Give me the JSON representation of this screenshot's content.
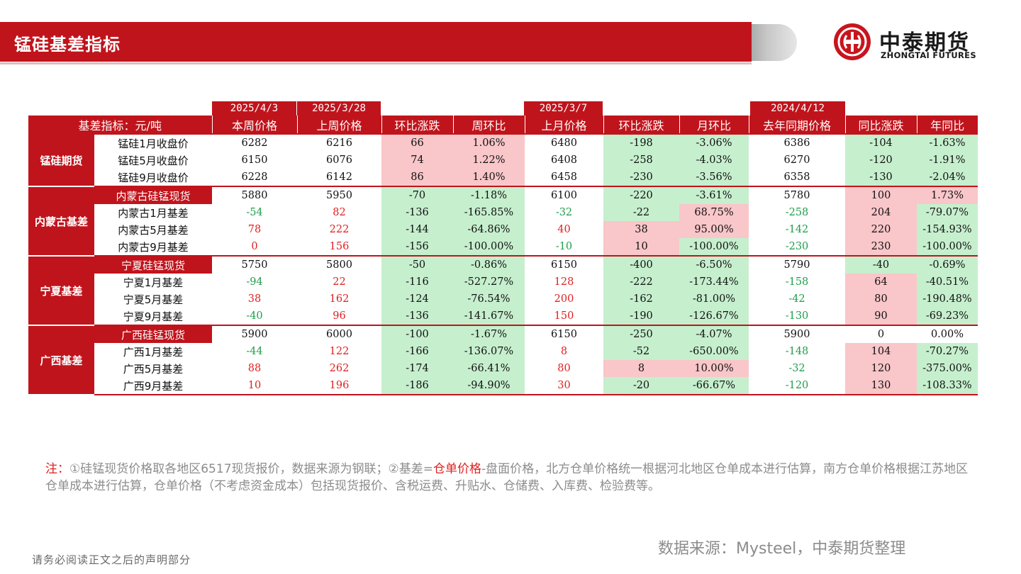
{
  "header": {
    "title": "锰硅基差指标"
  },
  "logo": {
    "cn": "中泰期货",
    "en": "ZHONGTAI FUTURES"
  },
  "colors": {
    "brand_red": "#c0141c",
    "up_fill": "#f9c6c9",
    "down_fill": "#c6efce",
    "green_text": "#1e9e4a",
    "red_text": "#e02020"
  },
  "table": {
    "dates": [
      "2025/4/3",
      "2025/3/28",
      "2025/3/7",
      "2024/4/12"
    ],
    "headers": [
      "基差指标：元/吨",
      "本周价格",
      "上周价格",
      "环比涨跌",
      "周环比",
      "上月价格",
      "环比涨跌",
      "月环比",
      "去年同期价格",
      "同比涨跌",
      "年同比"
    ],
    "groups": [
      {
        "name": "锰硅期货",
        "rows": [
          {
            "label": "锰硅1月收盘价",
            "spot": false,
            "v": [
              "6282",
              "6216",
              "66",
              "1.06%",
              "6480",
              "-198",
              "-3.06%",
              "6386",
              "-104",
              "-1.63%"
            ],
            "fill": [
              "",
              "",
              "up",
              "up",
              "",
              "dn",
              "dn",
              "",
              "dn",
              "dn"
            ],
            "text": [
              "",
              "",
              "",
              "",
              "",
              "",
              "",
              "",
              "",
              ""
            ]
          },
          {
            "label": "锰硅5月收盘价",
            "spot": false,
            "v": [
              "6150",
              "6076",
              "74",
              "1.22%",
              "6408",
              "-258",
              "-4.03%",
              "6270",
              "-120",
              "-1.91%"
            ],
            "fill": [
              "",
              "",
              "up",
              "up",
              "",
              "dn",
              "dn",
              "",
              "dn",
              "dn"
            ],
            "text": [
              "",
              "",
              "",
              "",
              "",
              "",
              "",
              "",
              "",
              ""
            ]
          },
          {
            "label": "锰硅9月收盘价",
            "spot": false,
            "v": [
              "6228",
              "6142",
              "86",
              "1.40%",
              "6458",
              "-230",
              "-3.56%",
              "6358",
              "-130",
              "-2.04%"
            ],
            "fill": [
              "",
              "",
              "up",
              "up",
              "",
              "dn",
              "dn",
              "",
              "dn",
              "dn"
            ],
            "text": [
              "",
              "",
              "",
              "",
              "",
              "",
              "",
              "",
              "",
              ""
            ]
          }
        ]
      },
      {
        "name": "内蒙古基差",
        "rows": [
          {
            "label": "内蒙古硅锰现货",
            "spot": true,
            "v": [
              "5880",
              "5950",
              "-70",
              "-1.18%",
              "6100",
              "-220",
              "-3.61%",
              "5780",
              "100",
              "1.73%"
            ],
            "fill": [
              "",
              "",
              "dn",
              "dn",
              "",
              "dn",
              "dn",
              "",
              "up",
              "up"
            ],
            "text": [
              "",
              "",
              "",
              "",
              "",
              "",
              "",
              "",
              "",
              ""
            ]
          },
          {
            "label": "内蒙古1月基差",
            "spot": false,
            "v": [
              "-54",
              "82",
              "-136",
              "-165.85%",
              "-32",
              "-22",
              "68.75%",
              "-258",
              "204",
              "-79.07%"
            ],
            "fill": [
              "",
              "",
              "dn",
              "dn",
              "",
              "dn",
              "up",
              "",
              "up",
              "dn"
            ],
            "text": [
              "g",
              "r",
              "",
              "",
              "g",
              "",
              "",
              "g",
              "",
              ""
            ]
          },
          {
            "label": "内蒙古5月基差",
            "spot": false,
            "v": [
              "78",
              "222",
              "-144",
              "-64.86%",
              "40",
              "38",
              "95.00%",
              "-142",
              "220",
              "-154.93%"
            ],
            "fill": [
              "",
              "",
              "dn",
              "dn",
              "",
              "up",
              "up",
              "",
              "up",
              "dn"
            ],
            "text": [
              "r",
              "r",
              "",
              "",
              "r",
              "",
              "",
              "g",
              "",
              ""
            ]
          },
          {
            "label": "内蒙古9月基差",
            "spot": false,
            "v": [
              "0",
              "156",
              "-156",
              "-100.00%",
              "-10",
              "10",
              "-100.00%",
              "-230",
              "230",
              "-100.00%"
            ],
            "fill": [
              "",
              "",
              "dn",
              "dn",
              "",
              "up",
              "dn",
              "",
              "up",
              "dn"
            ],
            "text": [
              "r",
              "r",
              "",
              "",
              "g",
              "",
              "",
              "g",
              "",
              ""
            ]
          }
        ]
      },
      {
        "name": "宁夏基差",
        "rows": [
          {
            "label": "宁夏硅锰现货",
            "spot": true,
            "v": [
              "5750",
              "5800",
              "-50",
              "-0.86%",
              "6150",
              "-400",
              "-6.50%",
              "5790",
              "-40",
              "-0.69%"
            ],
            "fill": [
              "",
              "",
              "dn",
              "dn",
              "",
              "dn",
              "dn",
              "",
              "dn",
              "dn"
            ],
            "text": [
              "",
              "",
              "",
              "",
              "",
              "",
              "",
              "",
              "",
              ""
            ]
          },
          {
            "label": "宁夏1月基差",
            "spot": false,
            "v": [
              "-94",
              "22",
              "-116",
              "-527.27%",
              "128",
              "-222",
              "-173.44%",
              "-158",
              "64",
              "-40.51%"
            ],
            "fill": [
              "",
              "",
              "dn",
              "dn",
              "",
              "dn",
              "dn",
              "",
              "up",
              "dn"
            ],
            "text": [
              "g",
              "r",
              "",
              "",
              "r",
              "",
              "",
              "g",
              "",
              ""
            ]
          },
          {
            "label": "宁夏5月基差",
            "spot": false,
            "v": [
              "38",
              "162",
              "-124",
              "-76.54%",
              "200",
              "-162",
              "-81.00%",
              "-42",
              "80",
              "-190.48%"
            ],
            "fill": [
              "",
              "",
              "dn",
              "dn",
              "",
              "dn",
              "dn",
              "",
              "up",
              "dn"
            ],
            "text": [
              "r",
              "r",
              "",
              "",
              "r",
              "",
              "",
              "g",
              "",
              ""
            ]
          },
          {
            "label": "宁夏9月基差",
            "spot": false,
            "v": [
              "-40",
              "96",
              "-136",
              "-141.67%",
              "150",
              "-190",
              "-126.67%",
              "-130",
              "90",
              "-69.23%"
            ],
            "fill": [
              "",
              "",
              "dn",
              "dn",
              "",
              "dn",
              "dn",
              "",
              "up",
              "dn"
            ],
            "text": [
              "g",
              "r",
              "",
              "",
              "r",
              "",
              "",
              "g",
              "",
              ""
            ]
          }
        ]
      },
      {
        "name": "广西基差",
        "rows": [
          {
            "label": "广西硅锰现货",
            "spot": true,
            "v": [
              "5900",
              "6000",
              "-100",
              "-1.67%",
              "6150",
              "-250",
              "-4.07%",
              "5900",
              "0",
              "0.00%"
            ],
            "fill": [
              "",
              "",
              "dn",
              "dn",
              "",
              "dn",
              "dn",
              "",
              "",
              ""
            ],
            "text": [
              "",
              "",
              "",
              "",
              "",
              "",
              "",
              "",
              "",
              ""
            ]
          },
          {
            "label": "广西1月基差",
            "spot": false,
            "v": [
              "-44",
              "122",
              "-166",
              "-136.07%",
              "8",
              "-52",
              "-650.00%",
              "-148",
              "104",
              "-70.27%"
            ],
            "fill": [
              "",
              "",
              "dn",
              "dn",
              "",
              "dn",
              "dn",
              "",
              "up",
              "dn"
            ],
            "text": [
              "g",
              "r",
              "",
              "",
              "r",
              "",
              "",
              "g",
              "",
              ""
            ]
          },
          {
            "label": "广西5月基差",
            "spot": false,
            "v": [
              "88",
              "262",
              "-174",
              "-66.41%",
              "80",
              "8",
              "10.00%",
              "-32",
              "120",
              "-375.00%"
            ],
            "fill": [
              "",
              "",
              "dn",
              "dn",
              "",
              "up",
              "up",
              "",
              "up",
              "dn"
            ],
            "text": [
              "r",
              "r",
              "",
              "",
              "r",
              "",
              "",
              "g",
              "",
              ""
            ]
          },
          {
            "label": "广西9月基差",
            "spot": false,
            "v": [
              "10",
              "196",
              "-186",
              "-94.90%",
              "30",
              "-20",
              "-66.67%",
              "-120",
              "130",
              "-108.33%"
            ],
            "fill": [
              "",
              "",
              "dn",
              "dn",
              "",
              "dn",
              "dn",
              "",
              "up",
              "dn"
            ],
            "text": [
              "r",
              "r",
              "",
              "",
              "r",
              "",
              "",
              "g",
              "",
              ""
            ]
          }
        ]
      }
    ]
  },
  "note": {
    "prefix": "注：",
    "part1": "①硅锰现货价格取各地区6517现货报价，数据来源为钢联；②基差=",
    "highlight": "仓单价格",
    "part2": "-盘面价格，北方仓单价格统一根据河北地区仓单成本进行估算，南方仓单价格根据江苏地区仓单成本进行估算，仓单价格（不考虑资金成本）包括现货报价、含税运费、升贴水、仓储费、入库费、检验费等。"
  },
  "source": "数据来源：Mysteel，中泰期货整理",
  "disclaimer": "请务必阅读正文之后的声明部分"
}
